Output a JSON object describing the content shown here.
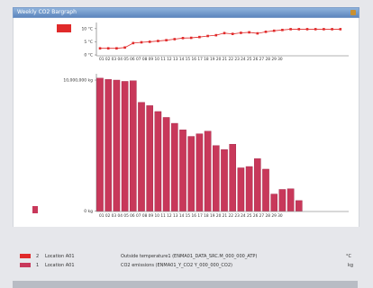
{
  "window": {
    "title": "Weekly CO2 Bargraph",
    "accent": "#c8385a"
  },
  "chart_data": [
    {
      "type": "line",
      "ylabel_unit": "°C",
      "ticks": [
        "10 °C",
        "5 °C",
        "0 °C"
      ],
      "ylim": [
        0,
        12
      ],
      "x": [
        "01",
        "02",
        "03",
        "04",
        "05",
        "06",
        "07",
        "08",
        "09",
        "10",
        "11",
        "12",
        "13",
        "14",
        "15",
        "16",
        "17",
        "18",
        "19",
        "20",
        "21",
        "22",
        "23",
        "24",
        "25",
        "26",
        "27",
        "28",
        "29",
        "30"
      ],
      "x_tick_labels": "01 02 03 04 05 06 07 08 09 10 11 12 13 14 15 16 17 18 19 20 21 22 23 24 25 26 27 28 29 30",
      "values": [
        2.5,
        2.5,
        2.5,
        2.8,
        4.5,
        4.8,
        5.0,
        5.3,
        5.6,
        6.0,
        6.4,
        6.5,
        6.8,
        7.2,
        7.5,
        8.3,
        8.0,
        8.4,
        8.6,
        8.2,
        8.8,
        9.2,
        9.5,
        9.8,
        9.8,
        9.8,
        9.8,
        9.8,
        9.8,
        9.8
      ],
      "color": "#e02a2a"
    },
    {
      "type": "bar",
      "ticks": [
        "10,000,000 kg",
        "0 kg"
      ],
      "ylim": [
        0,
        10000000
      ],
      "categories": [
        "01",
        "02",
        "03",
        "04",
        "05",
        "06",
        "07",
        "08",
        "09",
        "10",
        "11",
        "12",
        "13",
        "14",
        "15",
        "16",
        "17",
        "18",
        "19",
        "20",
        "21",
        "22",
        "23",
        "24",
        "25",
        "26",
        "27",
        "28",
        "29",
        "30"
      ],
      "x_tick_labels": "01 02 03 04 05 06 07 08 09 10 11 12 13 14 15 16 17 18 19 20 21 22 23 24 25 26 27 28 29 30",
      "values": [
        10150000,
        10050000,
        10000000,
        9900000,
        9950000,
        8300000,
        8050000,
        7600000,
        7150000,
        6700000,
        6200000,
        5700000,
        5900000,
        6100000,
        5000000,
        4700000,
        5100000,
        3300000,
        3400000,
        4000000,
        3200000,
        1300000,
        1650000,
        1700000,
        800000,
        0,
        0,
        0,
        0,
        0
      ],
      "color": "#c8385a"
    }
  ],
  "legend": [
    {
      "index": "2",
      "location": "Location A01",
      "description": "Outside temperature1 (ENMA01_DATA_SRC.M_000_000_ATP)",
      "unit": "°C",
      "color": "#e02a2a"
    },
    {
      "index": "1",
      "location": "Location A01",
      "description": "CO2 emissions (ENMA01_Y_CO2 Y_000_000_CO2)",
      "unit": "kg",
      "color": "#c8385a"
    }
  ]
}
